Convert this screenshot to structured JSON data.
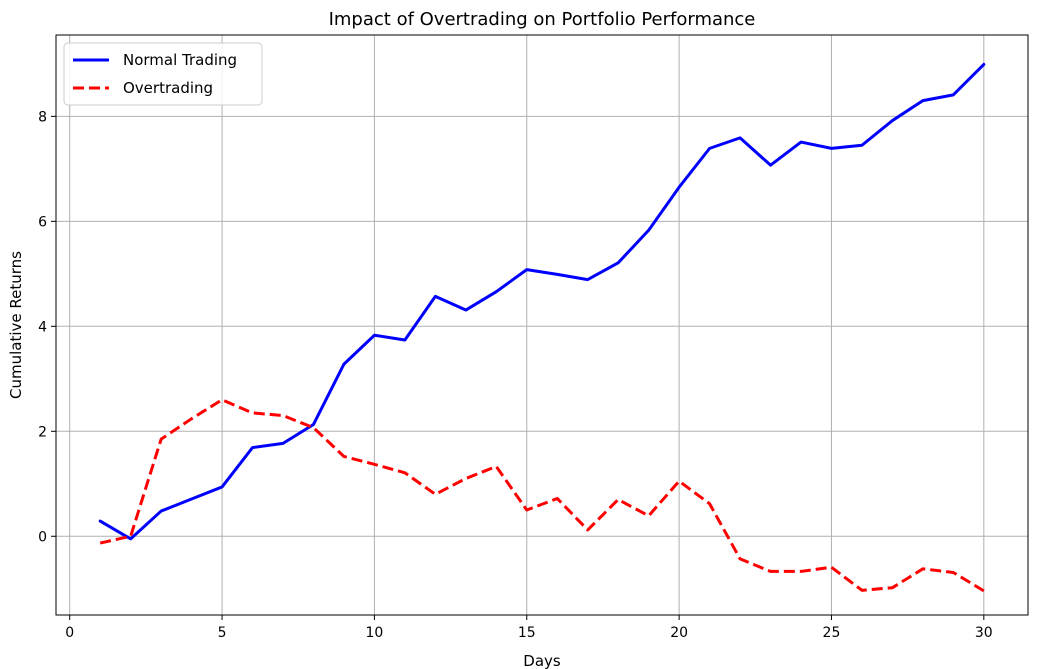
{
  "chart_data": {
    "type": "line",
    "title": "Impact of Overtrading on Portfolio Performance",
    "xlabel": "Days",
    "ylabel": "Cumulative Returns",
    "xlim": [
      -0.45,
      31.45
    ],
    "ylim": [
      -1.5,
      9.55
    ],
    "xticks": [
      0,
      5,
      10,
      15,
      20,
      25,
      30
    ],
    "yticks": [
      0,
      2,
      4,
      6,
      8
    ],
    "grid": true,
    "legend_position": "top-left",
    "x": [
      1,
      2,
      3,
      4,
      5,
      6,
      7,
      8,
      9,
      10,
      11,
      12,
      13,
      14,
      15,
      16,
      17,
      18,
      19,
      20,
      21,
      22,
      23,
      24,
      25,
      26,
      27,
      28,
      29,
      30
    ],
    "series": [
      {
        "name": "Normal Trading",
        "color": "#0000ff",
        "style": "solid",
        "values": [
          0.29,
          -0.05,
          0.48,
          0.71,
          0.94,
          1.69,
          1.77,
          2.13,
          3.28,
          3.83,
          3.74,
          4.57,
          4.31,
          4.66,
          5.08,
          4.99,
          4.89,
          5.21,
          5.83,
          6.65,
          7.39,
          7.59,
          7.07,
          7.51,
          7.39,
          7.45,
          7.92,
          8.3,
          8.41,
          8.99
        ]
      },
      {
        "name": "Overtrading",
        "color": "#ff0000",
        "style": "dashed",
        "values": [
          -0.13,
          0.0,
          1.85,
          2.24,
          2.6,
          2.35,
          2.3,
          2.07,
          1.52,
          1.37,
          1.21,
          0.8,
          1.1,
          1.33,
          0.5,
          0.72,
          0.12,
          0.7,
          0.39,
          1.05,
          0.62,
          -0.43,
          -0.67,
          -0.67,
          -0.59,
          -1.03,
          -0.98,
          -0.62,
          -0.69,
          -1.04
        ]
      }
    ]
  }
}
